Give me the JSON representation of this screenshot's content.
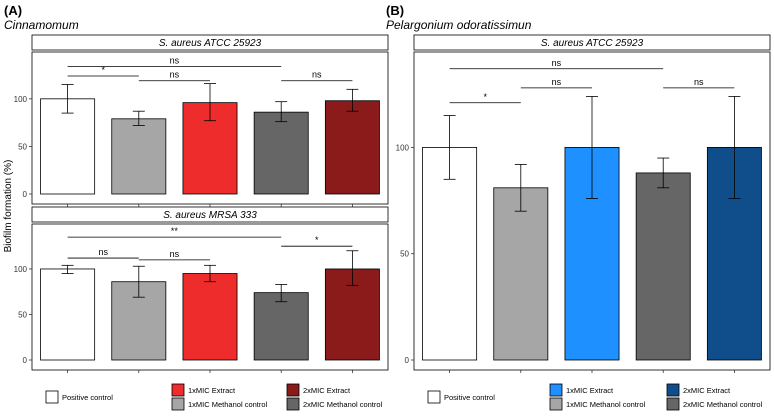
{
  "panels": [
    {
      "label": "(A)",
      "subtitle": "Cinnamomum",
      "ylabel": "Biofilm formation (%)",
      "legend": [
        {
          "label": "Positive control",
          "color": "#ffffff"
        },
        {
          "label": "1xMIC Extract",
          "color": "#ee2c2c"
        },
        {
          "label": "2xMIC Extract",
          "color": "#8b1a1a"
        },
        {
          "label": "1xMIC Methanol control",
          "color": "#a6a6a6"
        },
        {
          "label": "2xMIC Methanol control",
          "color": "#666666"
        }
      ]
    },
    {
      "label": "(B)",
      "subtitle": "Pelargonium odoratissimun",
      "legend": [
        {
          "label": "Positive control",
          "color": "#ffffff"
        },
        {
          "label": "1xMIC Extract",
          "color": "#1e90ff"
        },
        {
          "label": "2xMIC Extract",
          "color": "#104e8b"
        },
        {
          "label": "1xMIC Methanol control",
          "color": "#a6a6a6"
        },
        {
          "label": "2xMIC Methanol control",
          "color": "#666666"
        }
      ]
    }
  ],
  "chart_data": [
    {
      "type": "bar",
      "panel": "(A)",
      "title": "S. aureus ATCC 25923",
      "ylabel": "Biofilm formation (%)",
      "yticks": [
        0,
        50,
        100
      ],
      "ylim": [
        0,
        145
      ],
      "categories": [
        "Positive control",
        "1xMIC Methanol control",
        "1xMIC Extract",
        "2xMIC Methanol control",
        "2xMIC Extract"
      ],
      "values": [
        100,
        79,
        96,
        86,
        98
      ],
      "err_low": [
        85,
        72,
        77,
        76,
        87
      ],
      "err_high": [
        115,
        87,
        116,
        97,
        110
      ],
      "colors": [
        "#ffffff",
        "#a6a6a6",
        "#ee2c2c",
        "#666666",
        "#8b1a1a"
      ],
      "significance": [
        {
          "from": 0,
          "to": 1,
          "label": "*",
          "y": 124
        },
        {
          "from": 1,
          "to": 2,
          "label": "ns",
          "y": 119
        },
        {
          "from": 0,
          "to": 3,
          "label": "ns",
          "y": 134
        },
        {
          "from": 3,
          "to": 4,
          "label": "ns",
          "y": 119
        }
      ],
      "grid": false
    },
    {
      "type": "bar",
      "panel": "(A)",
      "title": "S. aureus MRSA 333",
      "ylabel": "Biofilm formation (%)",
      "yticks": [
        0,
        50,
        100
      ],
      "ylim": [
        0,
        145
      ],
      "categories": [
        "Positive control",
        "1xMIC Methanol control",
        "1xMIC Extract",
        "2xMIC Methanol control",
        "2xMIC Extract"
      ],
      "values": [
        100,
        86,
        95,
        74,
        100
      ],
      "err_low": [
        95,
        69,
        86,
        64,
        82
      ],
      "err_high": [
        104,
        103,
        104,
        83,
        120
      ],
      "colors": [
        "#ffffff",
        "#a6a6a6",
        "#ee2c2c",
        "#666666",
        "#8b1a1a"
      ],
      "significance": [
        {
          "from": 0,
          "to": 1,
          "label": "ns",
          "y": 112
        },
        {
          "from": 1,
          "to": 2,
          "label": "ns",
          "y": 110
        },
        {
          "from": 0,
          "to": 3,
          "label": "**",
          "y": 135
        },
        {
          "from": 3,
          "to": 4,
          "label": "*",
          "y": 125
        }
      ],
      "grid": false
    },
    {
      "type": "bar",
      "panel": "(B)",
      "title": "S. aureus ATCC 25923",
      "yticks": [
        0,
        50,
        100
      ],
      "ylim": [
        0,
        143
      ],
      "categories": [
        "Positive control",
        "1xMIC Methanol control",
        "1xMIC Extract",
        "2xMIC Methanol control",
        "2xMIC Extract"
      ],
      "values": [
        100,
        81,
        100,
        88,
        100
      ],
      "err_low": [
        85,
        70,
        76,
        81,
        76
      ],
      "err_high": [
        115,
        92,
        124,
        95,
        124
      ],
      "colors": [
        "#ffffff",
        "#a6a6a6",
        "#1e90ff",
        "#666666",
        "#104e8b"
      ],
      "significance": [
        {
          "from": 0,
          "to": 1,
          "label": "*",
          "y": 121
        },
        {
          "from": 1,
          "to": 2,
          "label": "ns",
          "y": 128
        },
        {
          "from": 0,
          "to": 3,
          "label": "ns",
          "y": 137
        },
        {
          "from": 3,
          "to": 4,
          "label": "ns",
          "y": 128
        }
      ],
      "grid": false
    }
  ]
}
